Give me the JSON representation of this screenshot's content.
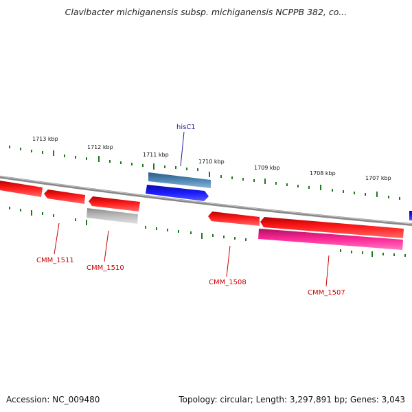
{
  "title": "Clavibacter michiganensis subsp. michiganensis NCPPB 382, co...",
  "footer": {
    "accession": "Accession: NC_009480",
    "summary": "Topology: circular; Length: 3,297,891 bp; Genes: 3,043"
  },
  "colors": {
    "backbone": "#8a8a8a",
    "tick": "#1f7a1f",
    "gene_red": "#ee1c1c",
    "gene_pink": "#ee2a90",
    "gene_blue": "#1515e6",
    "gene_steel": "#4f86b4",
    "gene_gray": "#b4b4b4",
    "label_red": "#cc0000",
    "label_blue": "#1a1aa0"
  },
  "scale_labels": [
    "1713 kbp",
    "1712 kbp",
    "1711 kbp",
    "1710 kbp",
    "1709 kbp",
    "1708 kbp",
    "1707 kbp"
  ],
  "gene_labels": {
    "hisC1": "hisC1",
    "CMM_1511": "CMM_1511",
    "CMM_1510": "CMM_1510",
    "CMM_1508": "CMM_1508",
    "CMM_1507": "CMM_1507"
  }
}
